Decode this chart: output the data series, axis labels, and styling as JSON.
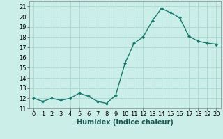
{
  "x": [
    0,
    1,
    2,
    3,
    4,
    5,
    6,
    7,
    8,
    9,
    10,
    11,
    12,
    13,
    14,
    15,
    16,
    17,
    18,
    19,
    20
  ],
  "y": [
    12.0,
    11.7,
    12.0,
    11.8,
    12.0,
    12.5,
    12.2,
    11.7,
    11.5,
    12.3,
    15.4,
    17.4,
    18.0,
    19.6,
    20.8,
    20.4,
    19.9,
    18.1,
    17.6,
    17.4,
    17.3
  ],
  "line_color": "#1a7a6e",
  "marker": "D",
  "marker_size": 2.0,
  "line_width": 1.0,
  "bg_color": "#cceee8",
  "grid_color": "#aad8d2",
  "xlabel": "Humidex (Indice chaleur)",
  "xlabel_fontsize": 7,
  "tick_fontsize": 6,
  "xlim": [
    -0.5,
    20.5
  ],
  "ylim": [
    11,
    21.5
  ],
  "yticks": [
    11,
    12,
    13,
    14,
    15,
    16,
    17,
    18,
    19,
    20,
    21
  ],
  "xticks": [
    0,
    1,
    2,
    3,
    4,
    5,
    6,
    7,
    8,
    9,
    10,
    11,
    12,
    13,
    14,
    15,
    16,
    17,
    18,
    19,
    20
  ],
  "spine_color": "#888888"
}
